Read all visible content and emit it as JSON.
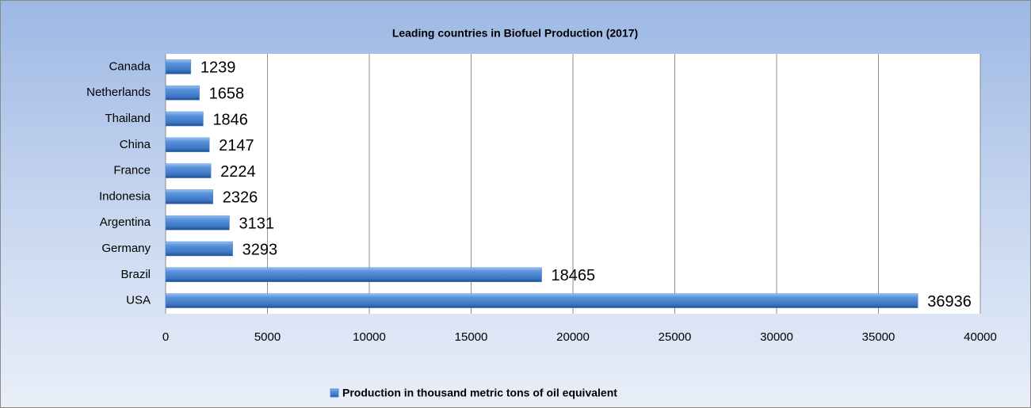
{
  "chart_data": {
    "type": "bar",
    "orientation": "horizontal",
    "title": "Leading countries in Biofuel Production (2017)",
    "categories": [
      "Canada",
      "Netherlands",
      "Thailand",
      "China",
      "France",
      "Indonesia",
      "Argentina",
      "Germany",
      "Brazil",
      "USA"
    ],
    "series": [
      {
        "name": "Production in thousand metric tons of oil equivalent",
        "color": "#4f86d4",
        "values": [
          1239,
          1658,
          1846,
          2147,
          2224,
          2326,
          3131,
          3293,
          18465,
          36936
        ]
      }
    ],
    "xlim": [
      0,
      40000
    ],
    "xticks": [
      0,
      5000,
      10000,
      15000,
      20000,
      25000,
      30000,
      35000,
      40000
    ],
    "grid": true,
    "legend": "bottom"
  }
}
